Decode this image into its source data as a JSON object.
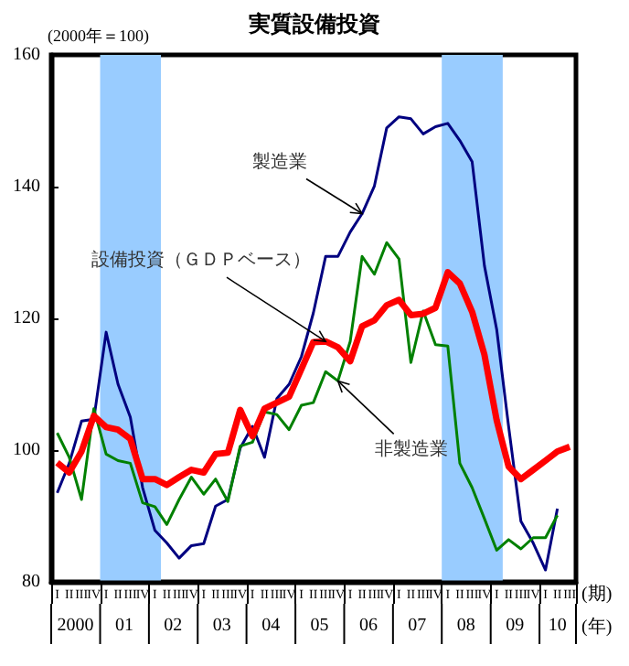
{
  "chart_data": {
    "type": "line",
    "title": "実質設備投資",
    "ylabel": "(2000年＝100)",
    "xlabel": "(年)",
    "x": [
      "2000-02-15",
      "2000-05-15",
      "2000-08-15",
      "2000-11-15",
      "2001-02-15",
      "2001-05-15",
      "2001-08-15",
      "2001-11-15",
      "2002-02-15",
      "2002-05-15",
      "2002-08-15",
      "2002-11-15",
      "2003-02-15",
      "2003-05-15",
      "2003-08-15",
      "2003-11-15",
      "2004-02-15",
      "2004-05-15",
      "2004-08-15",
      "2004-11-15",
      "2005-02-15",
      "2005-05-15",
      "2005-08-15",
      "2005-11-15",
      "2006-02-15",
      "2006-05-15",
      "2006-08-15",
      "2006-11-15",
      "2007-02-15",
      "2007-05-15",
      "2007-08-15",
      "2007-11-15",
      "2008-02-15",
      "2008-05-15",
      "2008-08-15",
      "2008-11-15",
      "2009-02-15",
      "2009-05-15",
      "2009-08-15",
      "2009-11-15",
      "2010-02-15",
      "2010-05-15",
      "2010-08-15"
    ],
    "series": [
      {
        "color": "#000080",
        "values": [
          93.5,
          98,
          104.4,
          104.7,
          117.9,
          110,
          105,
          94.3,
          87.8,
          85.9,
          83.6,
          85.5,
          85.8,
          91.5,
          92.5,
          100.3,
          103.6,
          98.9,
          107.8,
          110,
          114.2,
          120.8,
          129.4,
          129.4,
          133.1,
          135.9,
          140.1,
          148.9,
          150.6,
          150.3,
          148,
          149.1,
          149.6,
          147,
          143.8,
          128,
          118.3,
          103.6,
          89.2,
          85.9,
          81.8,
          91.1,
          null
        ]
      },
      {
        "color": "#008000",
        "values": [
          102.6,
          98.9,
          92.5,
          106.3,
          99.4,
          98.4,
          98,
          92,
          91.4,
          88.7,
          92.5,
          95.9,
          93.3,
          95.6,
          92.2,
          100.6,
          101.2,
          105.8,
          105.4,
          103.1,
          106.8,
          107.2,
          111.9,
          110.5,
          116.5,
          129.4,
          126.7,
          131.5,
          129,
          113.3,
          121.1,
          116,
          115.8,
          98,
          94.3,
          89.6,
          84.8,
          86.4,
          85,
          86.7,
          86.7,
          90.1,
          null
        ]
      },
      {
        "color": "#ff0000",
        "values": [
          98.1,
          96.6,
          99.8,
          105.2,
          103.5,
          103.1,
          101.7,
          95.6,
          95.6,
          94.7,
          95.9,
          97,
          96.6,
          99.4,
          99.6,
          106.1,
          102.1,
          106.3,
          107.2,
          108.1,
          112.3,
          116.4,
          116.5,
          115.6,
          113.5,
          118.8,
          119.7,
          122,
          122.8,
          120.5,
          120.7,
          121.6,
          127,
          125.3,
          121,
          114.5,
          104.5,
          97.5,
          95.6,
          97,
          98.4,
          99.8,
          100.5
        ]
      }
    ],
    "xlim": [
      "2000-01-01",
      "2010-10-01"
    ],
    "xticks": [
      {
        "value": "2000-01-01",
        "label": null
      },
      {
        "value": "2000-07-01",
        "label": "2000"
      },
      {
        "value": "2001-01-01",
        "label": null
      },
      {
        "value": "2001-07-01",
        "label": "01"
      },
      {
        "value": "2002-01-01",
        "label": null
      },
      {
        "value": "2002-07-01",
        "label": "02"
      },
      {
        "value": "2003-01-01",
        "label": null
      },
      {
        "value": "2003-07-01",
        "label": "03"
      },
      {
        "value": "2004-01-01",
        "label": null
      },
      {
        "value": "2004-07-01",
        "label": "04"
      },
      {
        "value": "2005-01-01",
        "label": null
      },
      {
        "value": "2005-07-01",
        "label": "05"
      },
      {
        "value": "2006-01-01",
        "label": null
      },
      {
        "value": "2006-07-01",
        "label": "06"
      },
      {
        "value": "2007-01-01",
        "label": null
      },
      {
        "value": "2007-07-01",
        "label": "07"
      },
      {
        "value": "2008-01-01",
        "label": null
      },
      {
        "value": "2008-07-01",
        "label": "08"
      },
      {
        "value": "2009-01-01",
        "label": null
      },
      {
        "value": "2009-07-01",
        "label": "09"
      },
      {
        "value": "2010-01-01",
        "label": null
      },
      {
        "value": "2010-05-16",
        "label": "10"
      },
      {
        "value": "2010-10-01",
        "label": null
      }
    ],
    "ylim": [
      80,
      160
    ],
    "yticks": [
      80,
      100,
      120,
      140,
      160
    ],
    "bands": [
      {
        "axis": "x",
        "from": "2001-01-01",
        "to": "2002-04-01",
        "color": "#99ccff"
      },
      {
        "axis": "x",
        "from": "2008-01-01",
        "to": "2009-04-01",
        "color": "#99ccff"
      }
    ],
    "annotations": [
      {
        "text": "製造業",
        "x": "2006-05-15",
        "y": 135.9
      },
      {
        "text": "設備投資（ＧＤＰベース）",
        "x": "2005-08-15",
        "y": 116.5
      },
      {
        "text": "非製造業",
        "x": "2005-11-15",
        "y": 110.5
      },
      "I",
      "II",
      "III",
      "IV",
      "I",
      "II",
      "III",
      "IV",
      "I",
      "II",
      "III",
      "IV",
      "I",
      "II",
      "III",
      "IV",
      "I",
      "II",
      "III",
      "IV",
      "I",
      "II",
      "III",
      "IV",
      "I",
      "II",
      "III",
      "IV",
      "I",
      "II",
      "III",
      "IV",
      "I",
      "II",
      "III",
      "IV",
      "I",
      "II",
      "III",
      "IV",
      "I",
      "II",
      "III",
      "(期)"
    ],
    "marker": "none",
    "line_style": "solid"
  }
}
